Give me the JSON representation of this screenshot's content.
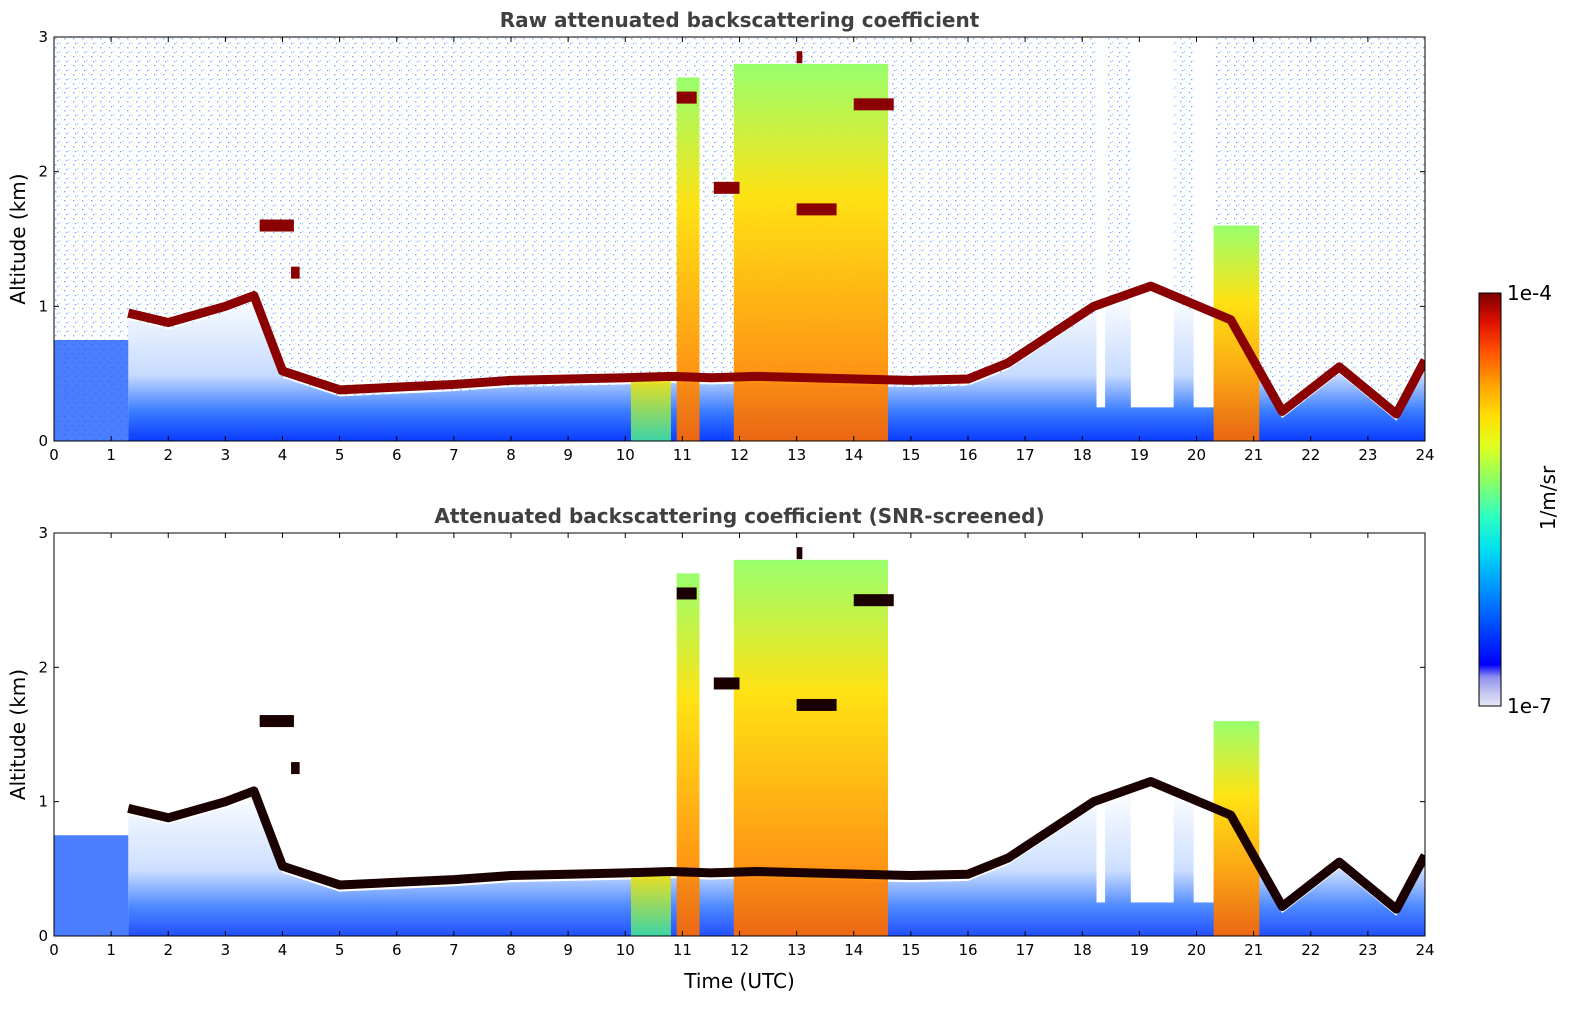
{
  "chart_data": [
    {
      "type": "heatmap",
      "title": "Raw attenuated backscattering coefficient",
      "xlabel": "",
      "ylabel": "Altitude (km)",
      "xlim": [
        0,
        24
      ],
      "ylim": [
        0,
        3
      ],
      "x_ticks": [
        "0",
        "1",
        "2",
        "3",
        "4",
        "5",
        "6",
        "7",
        "8",
        "9",
        "10",
        "11",
        "12",
        "13",
        "14",
        "15",
        "16",
        "17",
        "18",
        "19",
        "20",
        "21",
        "22",
        "23",
        "24"
      ],
      "y_ticks": [
        "0",
        "1",
        "2",
        "3"
      ],
      "screened": false,
      "features": {
        "boundary_layer_top_km": [
          [
            1.3,
            0.95
          ],
          [
            2.0,
            0.88
          ],
          [
            3.0,
            1.0
          ],
          [
            3.5,
            1.08
          ],
          [
            4.0,
            0.52
          ],
          [
            5.0,
            0.38
          ],
          [
            6.0,
            0.4
          ],
          [
            7.0,
            0.42
          ],
          [
            8.0,
            0.45
          ],
          [
            9.0,
            0.46
          ],
          [
            10.0,
            0.47
          ],
          [
            10.8,
            0.48
          ],
          [
            11.5,
            0.47
          ],
          [
            12.3,
            0.48
          ],
          [
            15.0,
            0.45
          ],
          [
            16.0,
            0.46
          ],
          [
            16.7,
            0.58
          ],
          [
            18.2,
            1.0
          ],
          [
            19.2,
            1.15
          ],
          [
            20.6,
            0.9
          ],
          [
            21.5,
            0.22
          ],
          [
            22.5,
            0.55
          ],
          [
            23.5,
            0.2
          ],
          [
            24.0,
            0.6
          ]
        ],
        "cloud_segments": [
          {
            "t_start": 3.6,
            "t_end": 4.2,
            "alt_km": 1.6
          },
          {
            "t_start": 4.15,
            "t_end": 4.3,
            "alt_km": 1.25
          },
          {
            "t_start": 10.9,
            "t_end": 11.25,
            "alt_km": 2.55
          },
          {
            "t_start": 11.55,
            "t_end": 12.0,
            "alt_km": 1.88
          },
          {
            "t_start": 13.0,
            "t_end": 13.7,
            "alt_km": 1.72
          },
          {
            "t_start": 13.0,
            "t_end": 13.1,
            "alt_km": 2.85
          },
          {
            "t_start": 14.0,
            "t_end": 14.7,
            "alt_km": 2.5
          }
        ],
        "aerosol_plumes": [
          {
            "t_start": 10.1,
            "t_end": 10.8,
            "top_km": 0.5
          },
          {
            "t_start": 10.9,
            "t_end": 11.3,
            "top_km": 2.7
          },
          {
            "t_start": 11.9,
            "t_end": 14.6,
            "top_km": 2.8
          },
          {
            "t_start": 20.3,
            "t_end": 21.1,
            "top_km": 1.6
          }
        ],
        "data_gaps": [
          {
            "t_start": 18.25,
            "t_end": 18.4
          },
          {
            "t_start": 18.85,
            "t_end": 19.6
          },
          {
            "t_start": 19.95,
            "t_end": 20.3
          }
        ]
      }
    },
    {
      "type": "heatmap",
      "title": "Attenuated backscattering coefficient (SNR-screened)",
      "xlabel": "Time (UTC)",
      "ylabel": "Altitude (km)",
      "xlim": [
        0,
        24
      ],
      "ylim": [
        0,
        3
      ],
      "x_ticks": [
        "0",
        "1",
        "2",
        "3",
        "4",
        "5",
        "6",
        "7",
        "8",
        "9",
        "10",
        "11",
        "12",
        "13",
        "14",
        "15",
        "16",
        "17",
        "18",
        "19",
        "20",
        "21",
        "22",
        "23",
        "24"
      ],
      "y_ticks": [
        "0",
        "1",
        "2",
        "3"
      ],
      "screened": true
    }
  ],
  "colorbar": {
    "label": "1/m/sr",
    "max_label": "1e-4",
    "min_label": "1e-7",
    "scale": "log",
    "colormap": [
      "#e8e8f8",
      "#c8c8f0",
      "#9090f0",
      "#0000ff",
      "#0050ff",
      "#00a0ff",
      "#00e0f0",
      "#30ffc0",
      "#90ff60",
      "#e0ff20",
      "#ffe000",
      "#ffa000",
      "#ff5000",
      "#e01000",
      "#a00000",
      "#7a0000"
    ]
  }
}
